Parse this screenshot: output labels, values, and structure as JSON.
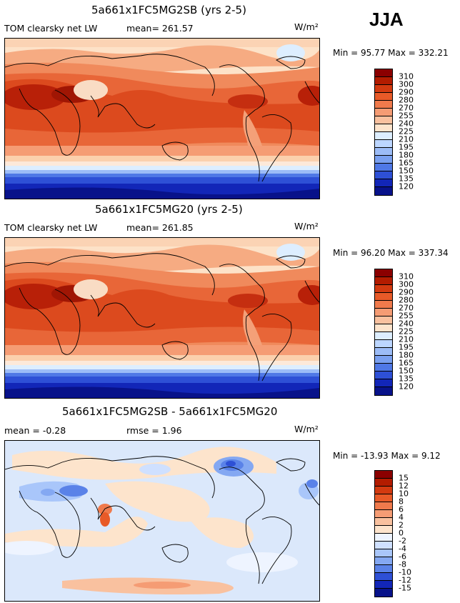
{
  "season": "JJA",
  "panels": [
    {
      "id": "panel-1",
      "title": "5a661x1FC5MG2SB (yrs 2-5)",
      "left_label": "TOM clearsky net LW",
      "mid_label": "mean= 261.57",
      "units": "W/m²",
      "minmax": "Min =  95.77 Max = 332.21",
      "levels": [
        "310",
        "300",
        "290",
        "280",
        "270",
        "255",
        "240",
        "225",
        "210",
        "195",
        "180",
        "165",
        "150",
        "135",
        "120"
      ],
      "colors": [
        "#8b0000",
        "#b31c00",
        "#d33a10",
        "#e85a28",
        "#f07a4c",
        "#f59c74",
        "#f9c19f",
        "#fde4cc",
        "#ddeeff",
        "#bcd6ff",
        "#9cbcf7",
        "#7aa0f0",
        "#4f78e6",
        "#2e50d6",
        "#1226b8",
        "#08128a"
      ]
    },
    {
      "id": "panel-2",
      "title": "5a661x1FC5MG20 (yrs 2-5)",
      "left_label": "TOM clearsky net LW",
      "mid_label": "mean= 261.85",
      "units": "W/m²",
      "minmax": "Min =  96.20 Max = 337.34",
      "levels": [
        "310",
        "300",
        "290",
        "280",
        "270",
        "255",
        "240",
        "225",
        "210",
        "195",
        "180",
        "165",
        "150",
        "135",
        "120"
      ],
      "colors": [
        "#8b0000",
        "#b31c00",
        "#d33a10",
        "#e85a28",
        "#f07a4c",
        "#f59c74",
        "#f9c19f",
        "#fde4cc",
        "#ddeeff",
        "#bcd6ff",
        "#9cbcf7",
        "#7aa0f0",
        "#4f78e6",
        "#2e50d6",
        "#1226b8",
        "#08128a"
      ]
    },
    {
      "id": "panel-3",
      "title": "5a661x1FC5MG2SB - 5a661x1FC5MG20",
      "left_label": "mean =  -0.28",
      "mid_label": "rmse =   1.96",
      "units": "W/m²",
      "minmax": "Min = -13.93 Max =   9.12",
      "levels": [
        "15",
        "12",
        "10",
        "8",
        "6",
        "4",
        "2",
        "0",
        "-2",
        "-4",
        "-6",
        "-8",
        "-10",
        "-12",
        "-15"
      ],
      "colors": [
        "#8b0000",
        "#b31c00",
        "#d33a10",
        "#e85a28",
        "#f07a4c",
        "#f59c74",
        "#f9c19f",
        "#fde4cc",
        "#eef4ff",
        "#cfe0ff",
        "#a9c6fa",
        "#84a8f2",
        "#5a82e8",
        "#2e50d6",
        "#1226b8",
        "#08128a"
      ]
    }
  ]
}
